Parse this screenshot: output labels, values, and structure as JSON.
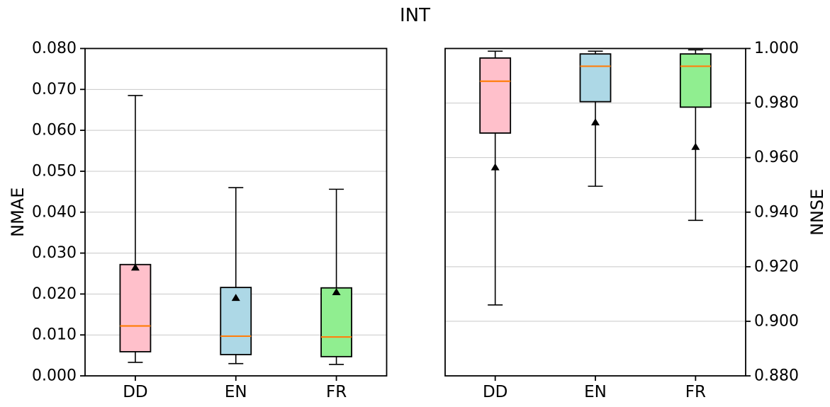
{
  "title": "INT",
  "colors": {
    "box_dd": "#FFC0CB",
    "box_en": "#ADD8E6",
    "box_fr": "#90EE90",
    "median": "#FF7F0E",
    "box_edge": "#000000",
    "whisker": "#000000",
    "mean_marker": "#000000",
    "grid": "#C8C8C8",
    "spine": "#000000",
    "text": "#000000"
  },
  "chart_data": [
    {
      "type": "box",
      "title": "",
      "ylabel": "NMAE",
      "ylabel_side": "left",
      "ylim": [
        0.0,
        0.08
      ],
      "yticks": [
        0.0,
        0.01,
        0.02,
        0.03,
        0.04,
        0.05,
        0.06,
        0.07,
        0.08
      ],
      "ytick_labels": [
        "0.000",
        "0.010",
        "0.020",
        "0.030",
        "0.040",
        "0.050",
        "0.060",
        "0.070",
        "0.080"
      ],
      "grid": true,
      "legend": "none",
      "categories": [
        "DD",
        "EN",
        "FR"
      ],
      "series": [
        {
          "label": "DD",
          "color": "#FFC0CB",
          "whislo": 0.0033,
          "q1": 0.0059,
          "med": 0.0122,
          "q3": 0.0272,
          "whishi": 0.0685,
          "mean": 0.0265
        },
        {
          "label": "EN",
          "color": "#ADD8E6",
          "whislo": 0.003,
          "q1": 0.0052,
          "med": 0.0097,
          "q3": 0.0216,
          "whishi": 0.046,
          "mean": 0.0191
        },
        {
          "label": "FR",
          "color": "#90EE90",
          "whislo": 0.0028,
          "q1": 0.0047,
          "med": 0.0095,
          "q3": 0.0215,
          "whishi": 0.0456,
          "mean": 0.0205
        }
      ]
    },
    {
      "type": "box",
      "title": "",
      "ylabel": "NNSE",
      "ylabel_side": "right",
      "ylim": [
        0.88,
        1.0
      ],
      "yticks": [
        0.88,
        0.9,
        0.92,
        0.94,
        0.96,
        0.98,
        1.0
      ],
      "ytick_labels": [
        "0.880",
        "0.900",
        "0.920",
        "0.940",
        "0.960",
        "0.980",
        "1.000"
      ],
      "grid": true,
      "legend": "none",
      "categories": [
        "DD",
        "EN",
        "FR"
      ],
      "series": [
        {
          "label": "DD",
          "color": "#FFC0CB",
          "whislo": 0.906,
          "q1": 0.969,
          "med": 0.988,
          "q3": 0.9965,
          "whishi": 0.999,
          "mean": 0.9565
        },
        {
          "label": "EN",
          "color": "#ADD8E6",
          "whislo": 0.9495,
          "q1": 0.9805,
          "med": 0.9935,
          "q3": 0.998,
          "whishi": 0.999,
          "mean": 0.973
        },
        {
          "label": "FR",
          "color": "#90EE90",
          "whislo": 0.937,
          "q1": 0.9785,
          "med": 0.9935,
          "q3": 0.998,
          "whishi": 0.9995,
          "mean": 0.964
        }
      ]
    }
  ]
}
